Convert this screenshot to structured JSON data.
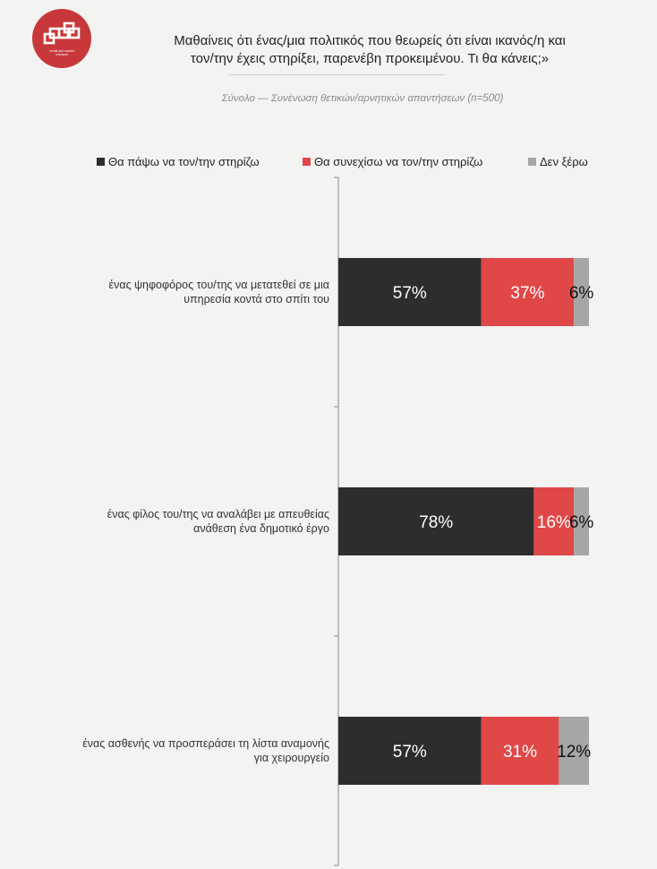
{
  "logo": {
    "text_line1": "social and market",
    "text_line2": "research",
    "color": "#c8383a"
  },
  "header": {
    "title_line1": "Μαθαίνεις ότι ένας/μια πολιτικός που θεωρείς ότι είναι ικανός/η και",
    "title_line2": "τον/την έχεις στηρίξει, παρενέβη προκειμένου. Τι θα κάνεις;»",
    "subtitle": "Σύνολο — Συνένωση θετικών/αρνητικών απαντήσεων (n=500)"
  },
  "chart_data": {
    "type": "bar",
    "orientation": "horizontal",
    "stacked": true,
    "categories": [
      "ένας ψηφοφόρος του/της να μετατεθεί σε μια υπηρεσία κοντά στο σπίτι του",
      "ένας φίλος του/της να αναλάβει με απευθείας ανάθεση ένα δημοτικό έργο",
      "ένας ασθενής να προσπεράσει τη λίστα αναμονής για χειρουργείο"
    ],
    "category_lines": [
      [
        "ένας ψηφοφόρος του/της να μετατεθεί σε μια",
        "υπηρεσία κοντά στο σπίτι του"
      ],
      [
        "ένας φίλος του/της να αναλάβει με απευθείας",
        "ανάθεση ένα δημοτικό έργο"
      ],
      [
        "ένας ασθενής να προσπεράσει τη λίστα αναμονής",
        "για χειρουργείο"
      ]
    ],
    "series": [
      {
        "name": "Θα πάψω να τον/την στηρίζω",
        "color": "#2d2d2d",
        "label_color": "#ffffff",
        "values": [
          57,
          78,
          57
        ],
        "labels": [
          "57%",
          "78%",
          "57%"
        ]
      },
      {
        "name": "Θα συνεχίσω να τον/την στηρίζω",
        "color": "#e04848",
        "label_color": "#ffffff",
        "values": [
          37,
          16,
          31
        ],
        "labels": [
          "37%",
          "16%",
          "31%"
        ]
      },
      {
        "name": "Δεν ξέρω",
        "color": "#a6a6a6",
        "label_color": "#111111",
        "values": [
          6,
          6,
          12
        ],
        "labels": [
          "6%",
          "6%",
          "12%"
        ]
      }
    ],
    "xlim": [
      0,
      100
    ],
    "legend_position": "top",
    "grid": false
  }
}
